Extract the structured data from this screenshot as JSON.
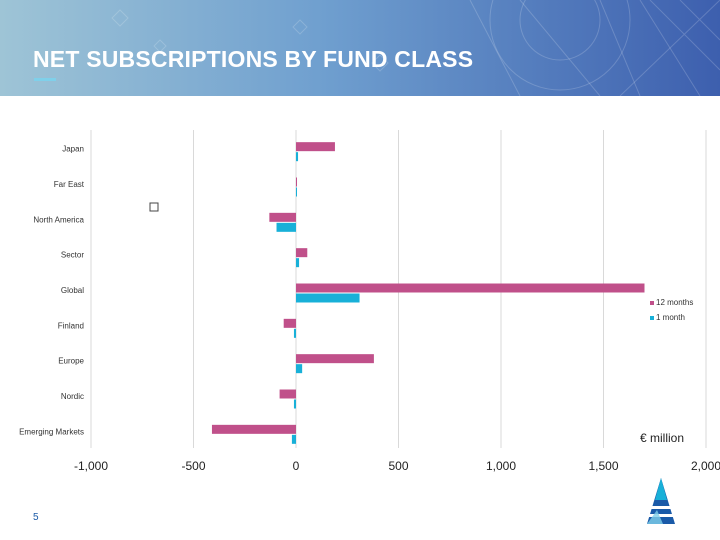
{
  "slide": {
    "title": "NET SUBSCRIPTIONS BY FUND CLASS",
    "page_number": "5",
    "accent_color": "#7fd0ea",
    "logo_icon": "triangle-logo-icon"
  },
  "chart_data": {
    "type": "bar",
    "orientation": "horizontal",
    "title": "",
    "xlabel": "",
    "ylabel": "",
    "unit_label": "€ million",
    "categories": [
      "Japan",
      "Far East",
      "North America",
      "Sector",
      "Global",
      "Finland",
      "Europe",
      "Nordic",
      "Emerging Markets"
    ],
    "series": [
      {
        "name": "12 months",
        "color": "#c0508a",
        "values": [
          190,
          0,
          -130,
          55,
          1700,
          -60,
          380,
          -80,
          -410
        ]
      },
      {
        "name": "1 month",
        "color": "#18b0d8",
        "values": [
          10,
          0,
          -95,
          15,
          310,
          -10,
          30,
          -10,
          -20
        ]
      }
    ],
    "xlim": [
      -1000,
      2000
    ],
    "xticks": [
      -1000,
      -500,
      0,
      500,
      1000,
      1500,
      2000
    ],
    "xtick_labels": [
      "-1,000",
      "-500",
      "0",
      "500",
      "1,000",
      "1,500",
      "2,000"
    ],
    "grid": true,
    "legend": "right"
  }
}
